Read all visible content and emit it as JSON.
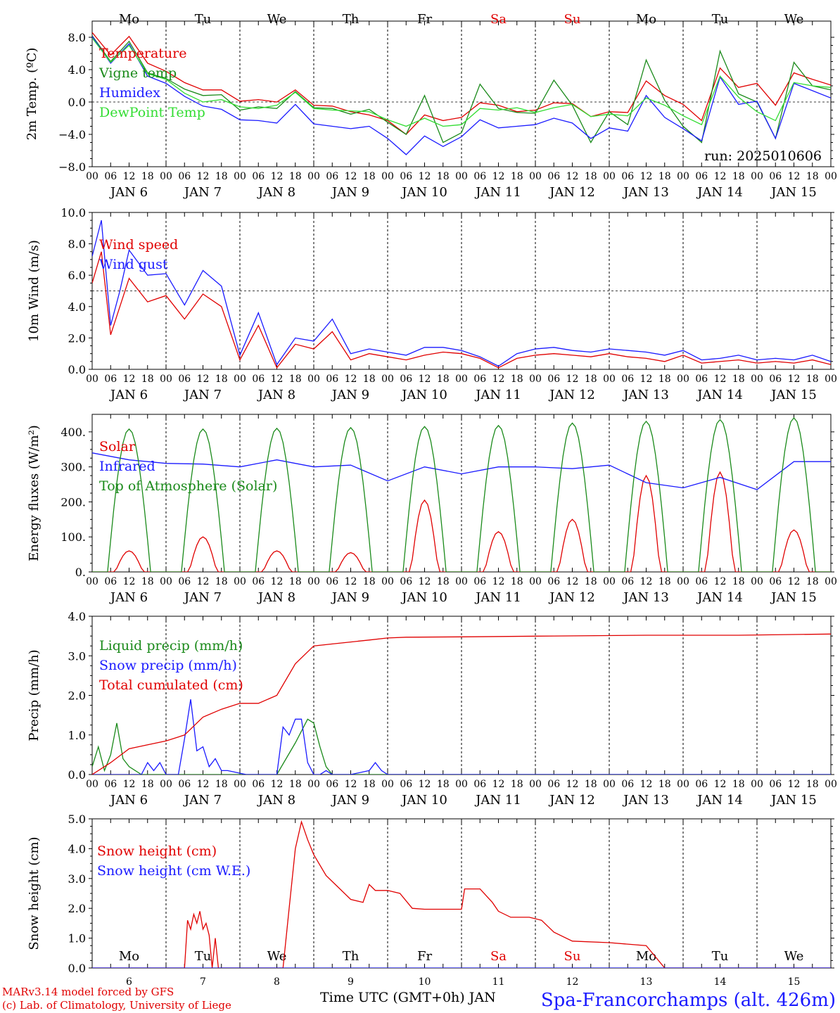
{
  "run_label": "run: 2025010606",
  "hours": [
    "00",
    "06",
    "12",
    "18"
  ],
  "dates": [
    "JAN  6",
    "JAN  7",
    "JAN  8",
    "JAN  9",
    "JAN 10",
    "JAN 11",
    "JAN 12",
    "JAN 13",
    "JAN 14",
    "JAN 15"
  ],
  "weekdays": [
    {
      "label": "Mo",
      "color": "#000000"
    },
    {
      "label": "Tu",
      "color": "#000000"
    },
    {
      "label": "We",
      "color": "#000000"
    },
    {
      "label": "Th",
      "color": "#000000"
    },
    {
      "label": "Fr",
      "color": "#000000"
    },
    {
      "label": "Sa",
      "color": "#e00000"
    },
    {
      "label": "Su",
      "color": "#e00000"
    },
    {
      "label": "Mo",
      "color": "#000000"
    },
    {
      "label": "Tu",
      "color": "#000000"
    },
    {
      "label": "We",
      "color": "#000000"
    }
  ],
  "day_numbers": [
    "6",
    "7",
    "8",
    "9",
    "10",
    "11",
    "12",
    "13",
    "14",
    "15"
  ],
  "footer": {
    "credit_line1": "MARv3.14 model forced by GFS",
    "credit_line2": "(c) Lab. of Climatology, University of Liege",
    "xlabel": "Time UTC (GMT+0h) JAN",
    "station": "Spa-Francorchamps (alt. 426m)"
  },
  "chart_data": [
    {
      "type": "line",
      "ylabel": "2m Temp. (ºC)",
      "ylim": [
        -8,
        10
      ],
      "yticks": [
        -8,
        -4,
        0,
        4,
        8
      ],
      "tick_labels": [
        "−8.0",
        "−4.0",
        "0.0",
        "4.0",
        "8.0"
      ],
      "hline": 0,
      "x": [
        0,
        6,
        12,
        18,
        24,
        30,
        36,
        42,
        48,
        54,
        60,
        66,
        72,
        78,
        84,
        90,
        96,
        102,
        108,
        114,
        120,
        126,
        132,
        138,
        144,
        150,
        156,
        162,
        168,
        174,
        180,
        186,
        192,
        198,
        204,
        210,
        216,
        222,
        228,
        234,
        240
      ],
      "series": [
        {
          "name": "Temperature",
          "color": "#e00000",
          "values": [
            8.6,
            5.8,
            8.1,
            4.8,
            3.8,
            2.4,
            1.5,
            1.5,
            0.1,
            0.3,
            0.0,
            1.5,
            -0.4,
            -0.5,
            -1.2,
            -1.6,
            -2.3,
            -4.0,
            -1.6,
            -2.3,
            -1.9,
            -0.1,
            -0.4,
            -1.2,
            -1.0,
            -0.1,
            -0.2,
            -1.8,
            -1.2,
            -1.3,
            2.6,
            0.8,
            -0.3,
            -2.3,
            4.2,
            1.8,
            2.3,
            -0.4,
            3.6,
            2.8,
            2.1
          ]
        },
        {
          "name": "Vigne temp",
          "color": "#1a8a1a",
          "values": [
            8.2,
            5.0,
            7.5,
            3.6,
            2.9,
            1.6,
            0.8,
            0.9,
            -1.0,
            -0.6,
            -0.8,
            1.3,
            -0.7,
            -0.8,
            -1.5,
            -0.9,
            -2.5,
            -4.0,
            0.8,
            -5.0,
            -3.8,
            2.2,
            -0.8,
            -1.3,
            -1.4,
            2.7,
            -0.4,
            -5.0,
            -1.2,
            -2.8,
            5.2,
            0.2,
            -3.0,
            -5.0,
            6.3,
            1.0,
            0.0,
            -4.5,
            4.9,
            2.0,
            1.5
          ]
        },
        {
          "name": "Humidex",
          "color": "#1a1aff",
          "values": [
            8.1,
            4.8,
            7.2,
            3.2,
            2.3,
            0.7,
            -0.5,
            -0.9,
            -2.2,
            -2.3,
            -2.6,
            -0.3,
            -2.7,
            -3.0,
            -3.3,
            -3.0,
            -4.5,
            -6.5,
            -4.2,
            -5.5,
            -4.3,
            -2.2,
            -3.2,
            -3.0,
            -2.8,
            -2.0,
            -2.6,
            -4.5,
            -3.2,
            -3.6,
            0.8,
            -1.9,
            -3.3,
            -4.8,
            3.1,
            -0.3,
            0.1,
            -4.5,
            2.3,
            1.4,
            0.5
          ]
        },
        {
          "name": "DewPoint Temp",
          "color": "#33dd33",
          "values": [
            7.9,
            4.9,
            7.0,
            3.5,
            2.8,
            1.1,
            0.0,
            0.3,
            -0.6,
            -0.8,
            -0.4,
            1.2,
            -0.8,
            -1.0,
            -1.1,
            -1.2,
            -2.2,
            -3.0,
            -2.0,
            -3.0,
            -2.8,
            -0.8,
            -1.0,
            -0.7,
            -1.3,
            -0.7,
            -0.3,
            -1.8,
            -1.5,
            -1.7,
            0.5,
            -0.4,
            -1.7,
            -2.8,
            3.2,
            0.6,
            -1.2,
            -2.3,
            2.4,
            2.0,
            1.8
          ]
        }
      ]
    },
    {
      "type": "line",
      "ylabel": "10m Wind (m/s)",
      "ylim": [
        0,
        10
      ],
      "yticks": [
        0,
        2,
        4,
        6,
        8,
        10
      ],
      "tick_labels": [
        "0.0",
        "2.0",
        "4.0",
        "6.0",
        "8.0",
        "10.0"
      ],
      "hline": 5,
      "x": [
        0,
        3,
        6,
        9,
        12,
        18,
        24,
        30,
        36,
        42,
        48,
        54,
        60,
        66,
        72,
        78,
        84,
        90,
        96,
        102,
        108,
        114,
        120,
        126,
        132,
        138,
        144,
        150,
        156,
        162,
        168,
        174,
        180,
        186,
        192,
        198,
        204,
        210,
        216,
        222,
        228,
        234,
        240
      ],
      "series": [
        {
          "name": "Wind speed",
          "color": "#e00000",
          "values": [
            5.5,
            7.5,
            2.2,
            4.0,
            5.8,
            4.3,
            4.7,
            3.2,
            4.8,
            4.0,
            0.6,
            2.8,
            0.1,
            1.6,
            1.3,
            2.4,
            0.6,
            1.0,
            0.8,
            0.6,
            0.9,
            1.1,
            1.0,
            0.7,
            0.1,
            0.7,
            0.9,
            1.0,
            0.9,
            0.8,
            1.0,
            0.8,
            0.7,
            0.5,
            0.9,
            0.4,
            0.5,
            0.6,
            0.4,
            0.5,
            0.4,
            0.6,
            0.3
          ]
        },
        {
          "name": "Wind gust",
          "color": "#1a1aff",
          "values": [
            7.2,
            9.5,
            2.8,
            5.0,
            7.6,
            6.0,
            6.1,
            4.1,
            6.3,
            5.3,
            0.9,
            3.6,
            0.3,
            2.0,
            1.8,
            3.2,
            1.0,
            1.3,
            1.1,
            0.9,
            1.4,
            1.4,
            1.2,
            0.8,
            0.2,
            1.0,
            1.3,
            1.4,
            1.2,
            1.1,
            1.3,
            1.2,
            1.1,
            0.9,
            1.2,
            0.6,
            0.7,
            0.9,
            0.6,
            0.7,
            0.6,
            0.9,
            0.5
          ]
        }
      ]
    },
    {
      "type": "line",
      "ylabel": "Energy fluxes (W/m²)",
      "ylim": [
        0,
        450
      ],
      "yticks": [
        0,
        100,
        200,
        300,
        400
      ],
      "tick_labels": [
        "0.",
        "100.",
        "200.",
        "300.",
        "400."
      ],
      "series": [
        {
          "name": "Solar",
          "color": "#e00000",
          "peaks": [
            60,
            100,
            60,
            55,
            205,
            115,
            150,
            275,
            285,
            120
          ]
        },
        {
          "name": "Infrared",
          "color": "#1a1aff",
          "x": [
            0,
            12,
            24,
            36,
            48,
            60,
            72,
            84,
            96,
            108,
            120,
            132,
            144,
            156,
            168,
            180,
            192,
            204,
            216,
            228,
            240
          ],
          "values": [
            340,
            320,
            310,
            308,
            300,
            320,
            300,
            305,
            260,
            300,
            280,
            300,
            300,
            295,
            305,
            255,
            240,
            270,
            235,
            315,
            315
          ]
        },
        {
          "name": "Top of Atmosphere (Solar)",
          "color": "#1a8a1a",
          "peaks": [
            408,
            408,
            410,
            412,
            415,
            418,
            425,
            430,
            435,
            440
          ]
        }
      ]
    },
    {
      "type": "line",
      "ylabel": "Precip (mm/h)",
      "ylim": [
        0,
        4
      ],
      "yticks": [
        0,
        1,
        2,
        3,
        4
      ],
      "tick_labels": [
        "0.0",
        "1.0",
        "2.0",
        "3.0",
        "4.0"
      ],
      "series": [
        {
          "name": "Liquid precip (mm/h)",
          "color": "#1a8a1a",
          "x": [
            0,
            2,
            4,
            6,
            8,
            10,
            12,
            14,
            16,
            18,
            20,
            60,
            66,
            70,
            72,
            74,
            76,
            78,
            80,
            240
          ],
          "values": [
            0.2,
            0.7,
            0.1,
            0.5,
            1.3,
            0.4,
            0.2,
            0.1,
            0.0,
            0.0,
            0.0,
            0.0,
            0.8,
            1.4,
            1.3,
            0.7,
            0.2,
            0.0,
            0.0,
            0.0
          ]
        },
        {
          "name": "Snow precip (mm/h)",
          "color": "#1a1aff",
          "x": [
            0,
            12,
            16,
            18,
            20,
            22,
            24,
            28,
            30,
            32,
            34,
            36,
            38,
            40,
            42,
            44,
            50,
            60,
            62,
            64,
            66,
            68,
            70,
            72,
            74,
            76,
            78,
            84,
            90,
            92,
            94,
            96,
            240
          ],
          "values": [
            0.0,
            0.0,
            0.0,
            0.3,
            0.1,
            0.3,
            0.0,
            0.0,
            0.9,
            1.9,
            0.6,
            0.7,
            0.2,
            0.4,
            0.1,
            0.1,
            0.0,
            0.0,
            1.2,
            1.0,
            1.4,
            1.4,
            0.3,
            0.0,
            0.0,
            0.1,
            0.0,
            0.0,
            0.1,
            0.3,
            0.1,
            0.0,
            0.0
          ]
        },
        {
          "name": "Total cumulated (cm)",
          "color": "#e00000",
          "x": [
            0,
            6,
            12,
            18,
            24,
            30,
            36,
            42,
            48,
            54,
            60,
            66,
            72,
            78,
            84,
            90,
            96,
            102,
            120,
            150,
            180,
            210,
            240
          ],
          "values": [
            0.0,
            0.3,
            0.65,
            0.75,
            0.85,
            1.0,
            1.45,
            1.65,
            1.8,
            1.8,
            2.0,
            2.8,
            3.25,
            3.3,
            3.35,
            3.4,
            3.45,
            3.47,
            3.48,
            3.5,
            3.52,
            3.52,
            3.55
          ]
        }
      ]
    },
    {
      "type": "line",
      "ylabel": "Snow height (cm)",
      "ylim": [
        0,
        5
      ],
      "yticks": [
        0,
        1,
        2,
        3,
        4,
        5
      ],
      "tick_labels": [
        "0.0",
        "1.0",
        "2.0",
        "3.0",
        "4.0",
        "5.0"
      ],
      "series": [
        {
          "name": "Snow height (cm)",
          "color": "#e00000",
          "x": [
            0,
            30,
            31,
            32,
            33,
            34,
            35,
            36,
            37,
            38,
            39,
            40,
            41,
            42,
            43,
            44,
            62,
            64,
            66,
            68,
            70,
            72,
            76,
            80,
            84,
            88,
            90,
            91,
            92,
            96,
            100,
            104,
            108,
            114,
            120,
            121,
            126,
            130,
            132,
            136,
            142,
            144,
            146,
            150,
            156,
            168,
            180,
            186,
            240
          ],
          "values": [
            0,
            0,
            1.6,
            1.3,
            1.8,
            1.5,
            1.9,
            1.3,
            1.5,
            1.1,
            0,
            1.0,
            0,
            0,
            0,
            0,
            0,
            2.0,
            4.0,
            4.9,
            4.3,
            3.8,
            3.1,
            2.7,
            2.3,
            2.2,
            2.8,
            2.7,
            2.6,
            2.6,
            2.5,
            2.0,
            1.97,
            1.97,
            1.97,
            2.65,
            2.65,
            2.2,
            1.9,
            1.7,
            1.7,
            1.65,
            1.6,
            1.2,
            0.9,
            0.85,
            0.75,
            0,
            0
          ]
        },
        {
          "name": "Snow height (cm W.E.)",
          "color": "#1a1aff",
          "x": [
            0,
            240
          ],
          "values": [
            0,
            0
          ]
        }
      ]
    }
  ]
}
